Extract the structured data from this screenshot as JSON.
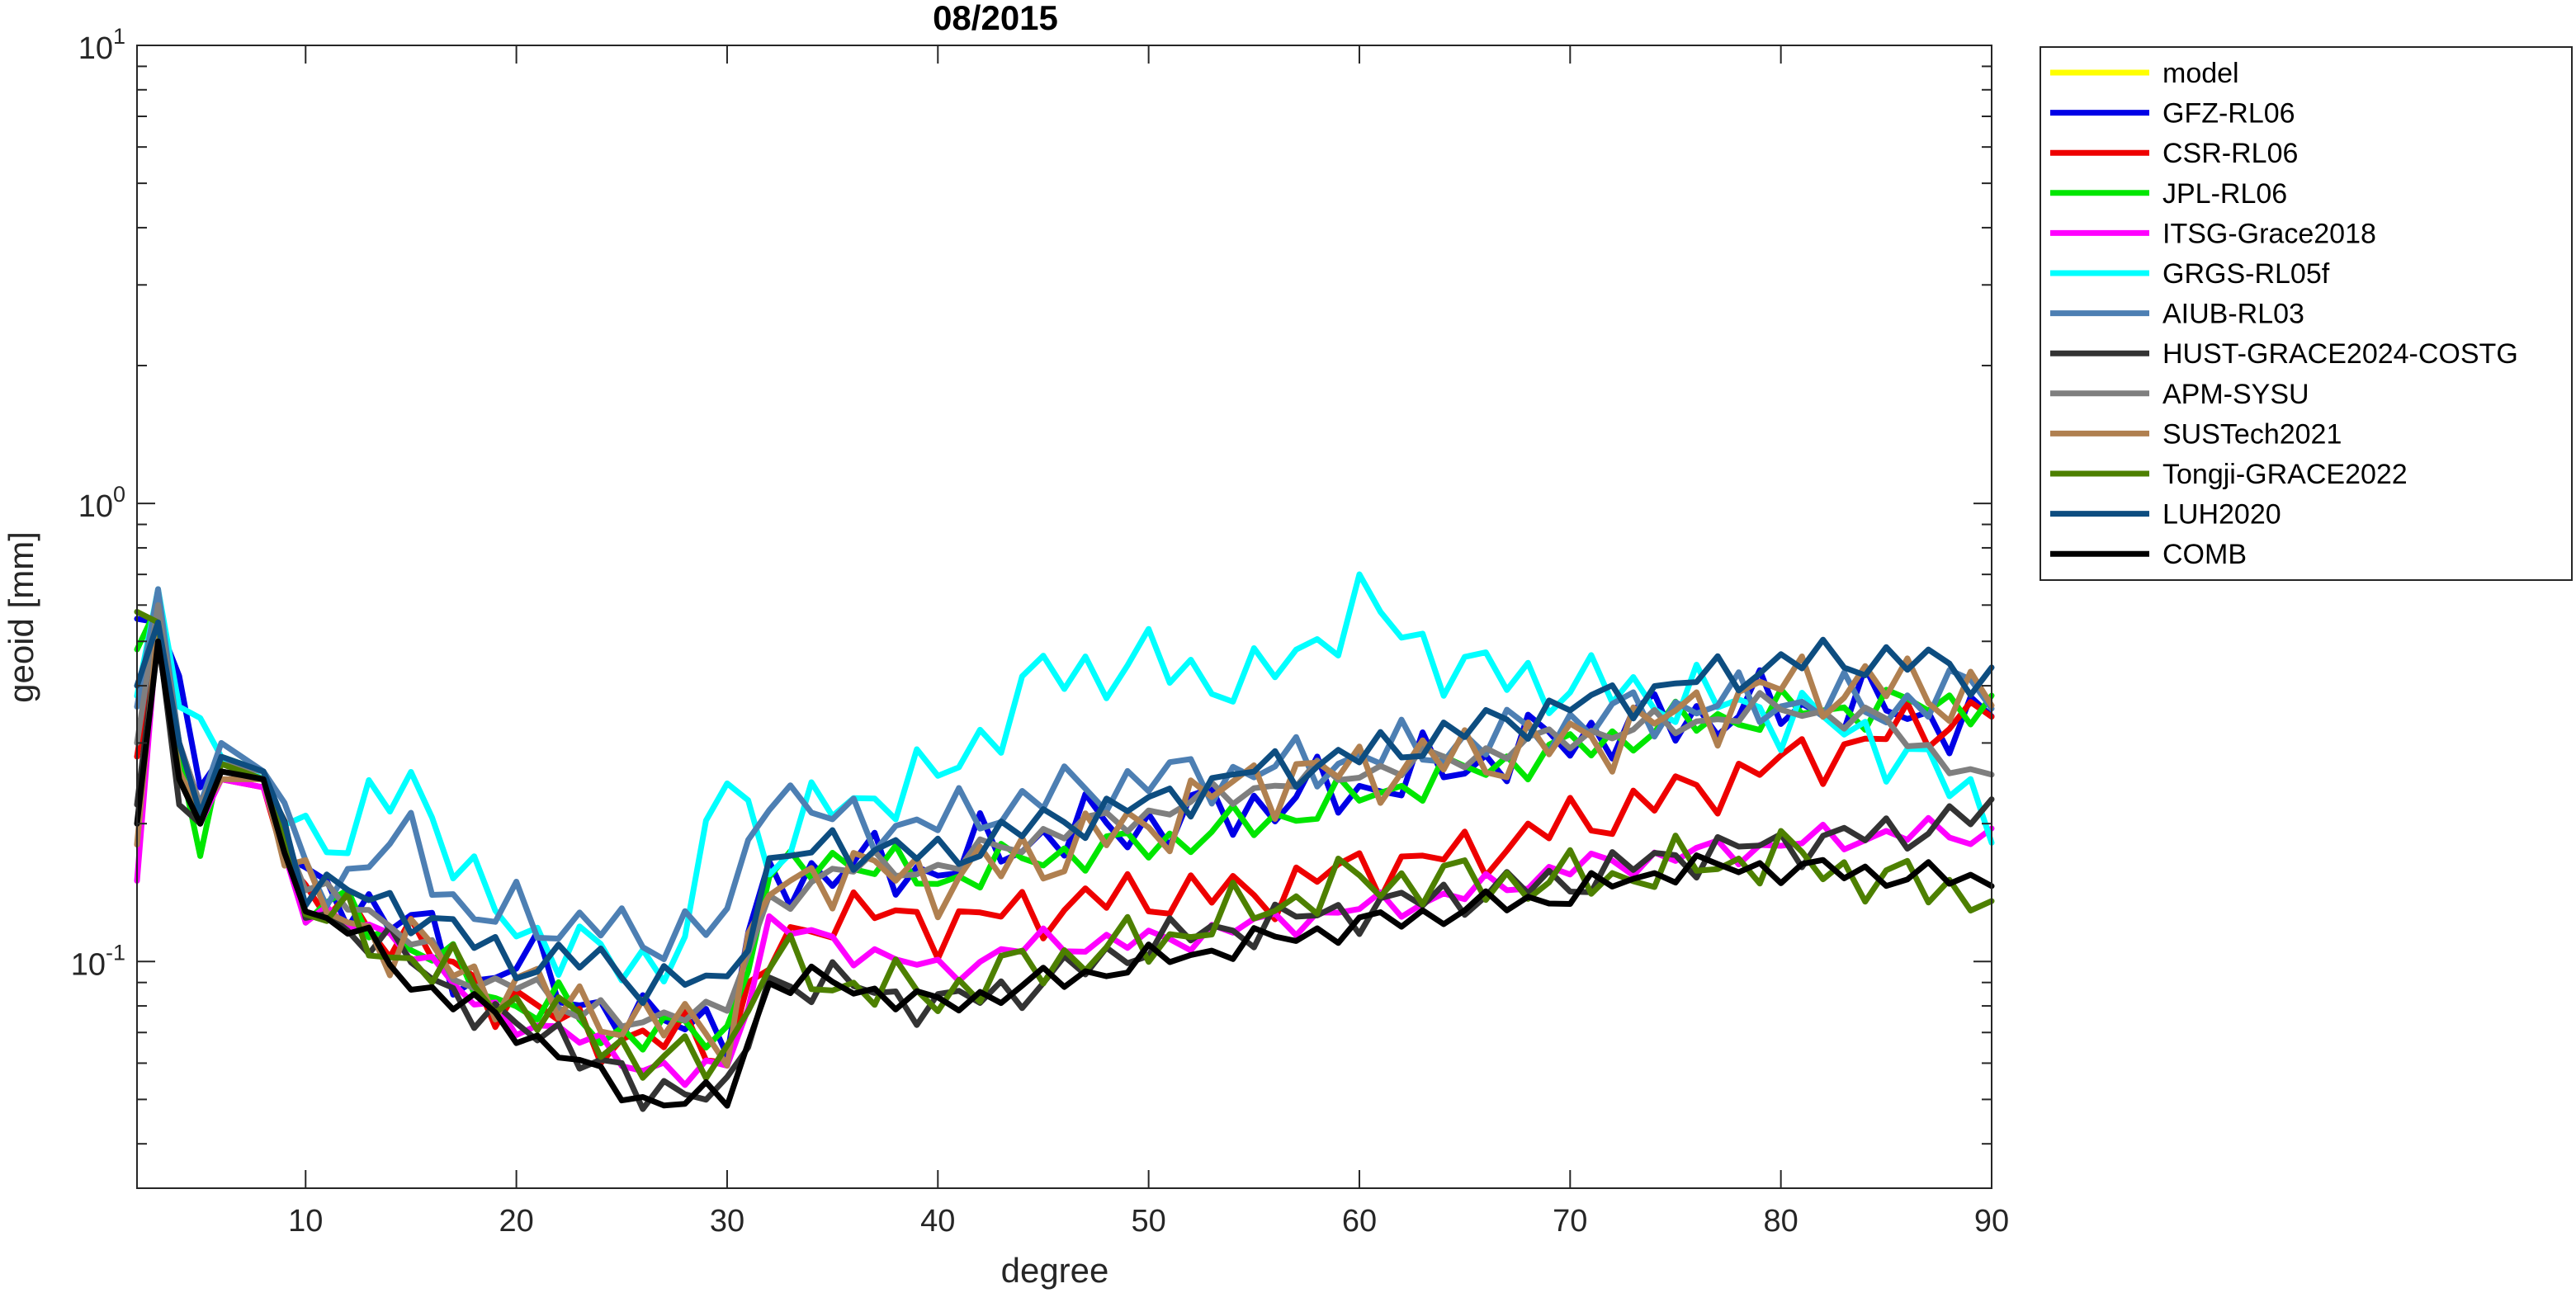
{
  "chart_data": {
    "type": "line",
    "title": "08/2015",
    "xlabel": "degree",
    "ylabel": "geoid [mm]",
    "xlim": [
      2,
      90
    ],
    "ylim": [
      0.032,
      10
    ],
    "yscale": "log",
    "grid": false,
    "legend_position": "outside-right",
    "xticks": [
      10,
      20,
      30,
      40,
      50,
      60,
      70,
      80,
      90
    ],
    "yticks": [
      {
        "value": 0.1,
        "base": "10",
        "exp": "-1"
      },
      {
        "value": 1,
        "base": "10",
        "exp": "0"
      },
      {
        "value": 10,
        "base": "10",
        "exp": "1"
      }
    ],
    "anchors_x": [
      2,
      3,
      4,
      5,
      6,
      8,
      10,
      12,
      15,
      18,
      20,
      22,
      24,
      26,
      28,
      30,
      32,
      35,
      40,
      45,
      50,
      55,
      60,
      65,
      70,
      75,
      80,
      85,
      90
    ],
    "series": [
      {
        "name": "model",
        "color": "#ffff00",
        "visible": false,
        "anchors": []
      },
      {
        "name": "GFZ-RL06",
        "color": "#0000e6",
        "anchors": [
          0.56,
          0.55,
          0.42,
          0.24,
          0.28,
          0.25,
          0.14,
          0.14,
          0.12,
          0.09,
          0.1,
          0.09,
          0.08,
          0.07,
          0.08,
          0.07,
          0.15,
          0.16,
          0.16,
          0.19,
          0.2,
          0.22,
          0.24,
          0.27,
          0.31,
          0.34,
          0.36,
          0.36,
          0.32
        ]
      },
      {
        "name": "CSR-RL06",
        "color": "#ee0000",
        "anchors": [
          0.28,
          0.55,
          0.3,
          0.22,
          0.25,
          0.24,
          0.13,
          0.13,
          0.11,
          0.09,
          0.08,
          0.075,
          0.07,
          0.065,
          0.07,
          0.065,
          0.1,
          0.13,
          0.12,
          0.13,
          0.14,
          0.14,
          0.16,
          0.17,
          0.2,
          0.23,
          0.27,
          0.31,
          0.36
        ]
      },
      {
        "name": "JPL-RL06",
        "color": "#00e600",
        "anchors": [
          0.48,
          0.6,
          0.28,
          0.17,
          0.28,
          0.26,
          0.13,
          0.13,
          0.11,
          0.09,
          0.08,
          0.08,
          0.07,
          0.07,
          0.07,
          0.07,
          0.15,
          0.17,
          0.15,
          0.17,
          0.18,
          0.2,
          0.23,
          0.26,
          0.29,
          0.33,
          0.35,
          0.36,
          0.37
        ]
      },
      {
        "name": "ITSG-Grace2018",
        "color": "#ff00ff",
        "anchors": [
          0.15,
          0.55,
          0.25,
          0.2,
          0.25,
          0.24,
          0.13,
          0.12,
          0.11,
          0.08,
          0.075,
          0.07,
          0.065,
          0.06,
          0.055,
          0.06,
          0.12,
          0.11,
          0.095,
          0.11,
          0.11,
          0.12,
          0.13,
          0.14,
          0.16,
          0.17,
          0.18,
          0.19,
          0.19
        ]
      },
      {
        "name": "GRGS-RL05f",
        "color": "#00ffff",
        "anchors": [
          0.38,
          0.65,
          0.36,
          0.34,
          0.28,
          0.25,
          0.2,
          0.18,
          0.26,
          0.14,
          0.12,
          0.11,
          0.1,
          0.1,
          0.11,
          0.27,
          0.17,
          0.22,
          0.25,
          0.42,
          0.45,
          0.4,
          0.6,
          0.43,
          0.4,
          0.38,
          0.35,
          0.3,
          0.21
        ]
      },
      {
        "name": "AIUB-RL03",
        "color": "#4d7fb3",
        "anchors": [
          0.36,
          0.65,
          0.3,
          0.22,
          0.3,
          0.26,
          0.16,
          0.15,
          0.19,
          0.12,
          0.13,
          0.12,
          0.12,
          0.11,
          0.12,
          0.12,
          0.25,
          0.2,
          0.2,
          0.23,
          0.25,
          0.26,
          0.28,
          0.3,
          0.33,
          0.36,
          0.37,
          0.36,
          0.4
        ]
      },
      {
        "name": "HUST-GRACE2024-COSTG",
        "color": "#333333",
        "anchors": [
          0.22,
          0.52,
          0.22,
          0.2,
          0.26,
          0.25,
          0.13,
          0.12,
          0.1,
          0.08,
          0.07,
          0.07,
          0.06,
          0.05,
          0.055,
          0.05,
          0.09,
          0.09,
          0.08,
          0.09,
          0.11,
          0.12,
          0.13,
          0.14,
          0.15,
          0.17,
          0.18,
          0.19,
          0.21
        ]
      },
      {
        "name": "APM-SYSU",
        "color": "#7f7f7f",
        "anchors": [
          0.3,
          0.6,
          0.3,
          0.22,
          0.27,
          0.26,
          0.14,
          0.14,
          0.11,
          0.09,
          0.09,
          0.08,
          0.08,
          0.07,
          0.08,
          0.08,
          0.13,
          0.16,
          0.16,
          0.19,
          0.21,
          0.24,
          0.26,
          0.28,
          0.31,
          0.33,
          0.36,
          0.33,
          0.24
        ]
      },
      {
        "name": "SUSTech2021",
        "color": "#b08050",
        "anchors": [
          0.18,
          0.55,
          0.26,
          0.21,
          0.25,
          0.25,
          0.14,
          0.12,
          0.11,
          0.09,
          0.09,
          0.08,
          0.08,
          0.07,
          0.075,
          0.07,
          0.14,
          0.16,
          0.15,
          0.17,
          0.2,
          0.25,
          0.26,
          0.28,
          0.3,
          0.34,
          0.4,
          0.4,
          0.38
        ]
      },
      {
        "name": "Tongji-GRACE2022",
        "color": "#4d8000",
        "anchors": [
          0.58,
          0.55,
          0.25,
          0.2,
          0.27,
          0.25,
          0.13,
          0.12,
          0.1,
          0.09,
          0.08,
          0.075,
          0.07,
          0.06,
          0.06,
          0.065,
          0.1,
          0.09,
          0.085,
          0.1,
          0.11,
          0.13,
          0.15,
          0.15,
          0.15,
          0.16,
          0.17,
          0.15,
          0.14
        ]
      },
      {
        "name": "LUH2020",
        "color": "#0d4d80",
        "anchors": [
          0.4,
          0.55,
          0.3,
          0.21,
          0.28,
          0.26,
          0.15,
          0.14,
          0.13,
          0.11,
          0.1,
          0.1,
          0.1,
          0.09,
          0.09,
          0.09,
          0.16,
          0.18,
          0.17,
          0.2,
          0.22,
          0.26,
          0.28,
          0.32,
          0.36,
          0.4,
          0.45,
          0.46,
          0.42
        ]
      },
      {
        "name": "COMB",
        "color": "#000000",
        "anchors": [
          0.2,
          0.5,
          0.25,
          0.2,
          0.26,
          0.25,
          0.13,
          0.12,
          0.09,
          0.08,
          0.07,
          0.065,
          0.055,
          0.05,
          0.05,
          0.05,
          0.09,
          0.09,
          0.08,
          0.09,
          0.1,
          0.11,
          0.12,
          0.13,
          0.14,
          0.16,
          0.16,
          0.155,
          0.15
        ]
      }
    ]
  }
}
